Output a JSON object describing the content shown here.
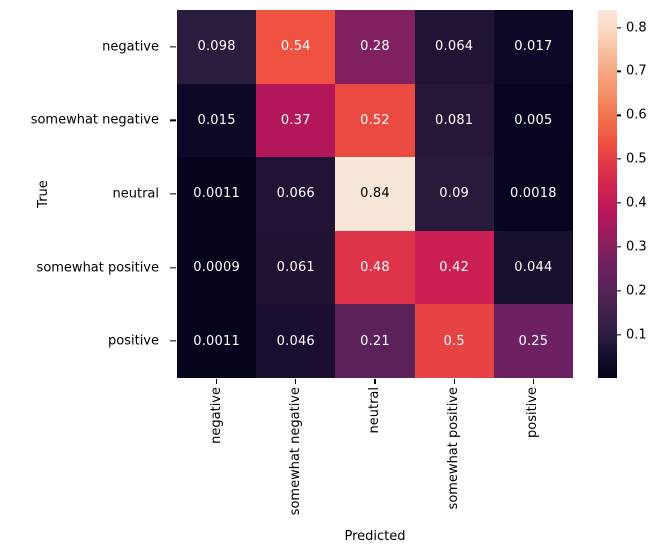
{
  "chart_data": {
    "type": "heatmap",
    "title": "",
    "xlabel": "Predicted",
    "ylabel": "True",
    "categories": [
      "negative",
      "somewhat negative",
      "neutral",
      "somewhat positive",
      "positive"
    ],
    "matrix": [
      [
        0.098,
        0.54,
        0.28,
        0.064,
        0.017
      ],
      [
        0.015,
        0.37,
        0.52,
        0.081,
        0.005
      ],
      [
        0.0011,
        0.066,
        0.84,
        0.09,
        0.0018
      ],
      [
        0.0009,
        0.061,
        0.48,
        0.42,
        0.044
      ],
      [
        0.0011,
        0.046,
        0.21,
        0.5,
        0.25
      ]
    ],
    "cell_labels": [
      [
        "0.098",
        "0.54",
        "0.28",
        "0.064",
        "0.017"
      ],
      [
        "0.015",
        "0.37",
        "0.52",
        "0.081",
        "0.005"
      ],
      [
        "0.0011",
        "0.066",
        "0.84",
        "0.09",
        "0.0018"
      ],
      [
        "0.0009",
        "0.061",
        "0.48",
        "0.42",
        "0.044"
      ],
      [
        "0.0011",
        "0.046",
        "0.21",
        "0.5",
        "0.25"
      ]
    ],
    "cell_colors": [
      [
        "#2A1C3C",
        "#EF5240",
        "#81205E",
        "#201334",
        "#0D0826"
      ],
      [
        "#0C0825",
        "#B31659",
        "#EB4A41",
        "#261739",
        "#080522"
      ],
      [
        "#05041D",
        "#211335",
        "#F8E6D8",
        "#281A3A",
        "#06041E"
      ],
      [
        "#05041C",
        "#1F1233",
        "#DE3348",
        "#CB1E52",
        "#180E2E"
      ],
      [
        "#05041D",
        "#190E2F",
        "#5A2259",
        "#E74244",
        "#6C2062"
      ]
    ],
    "annot_light_color": "#ffffff",
    "annot_dark_color": "#000000",
    "grid_on": false,
    "colorbar": {
      "position": "right",
      "vmin": 0.0009,
      "vmax": 0.84,
      "ticks": [
        0.1,
        0.2,
        0.3,
        0.4,
        0.5,
        0.6,
        0.7,
        0.8
      ],
      "tick_labels": [
        "0.1",
        "0.2",
        "0.3",
        "0.4",
        "0.5",
        "0.6",
        "0.7",
        "0.8"
      ],
      "gradient": [
        {
          "t": 0.0,
          "c": "#04041C"
        },
        {
          "t": 0.06,
          "c": "#150E2C"
        },
        {
          "t": 0.12,
          "c": "#2C1E40"
        },
        {
          "t": 0.19,
          "c": "#44214E"
        },
        {
          "t": 0.25,
          "c": "#5A2259"
        },
        {
          "t": 0.31,
          "c": "#6F2061"
        },
        {
          "t": 0.36,
          "c": "#8A205F"
        },
        {
          "t": 0.44,
          "c": "#B31659"
        },
        {
          "t": 0.5,
          "c": "#CB1E52"
        },
        {
          "t": 0.57,
          "c": "#DE3348"
        },
        {
          "t": 0.62,
          "c": "#EA4842"
        },
        {
          "t": 0.64,
          "c": "#EF5240"
        },
        {
          "t": 0.71,
          "c": "#F1734E"
        },
        {
          "t": 0.78,
          "c": "#F5936B"
        },
        {
          "t": 0.83,
          "c": "#F6A582"
        },
        {
          "t": 0.9,
          "c": "#F9C5A6"
        },
        {
          "t": 0.95,
          "c": "#FBDCC4"
        },
        {
          "t": 1.0,
          "c": "#F8E7D9"
        }
      ]
    }
  }
}
